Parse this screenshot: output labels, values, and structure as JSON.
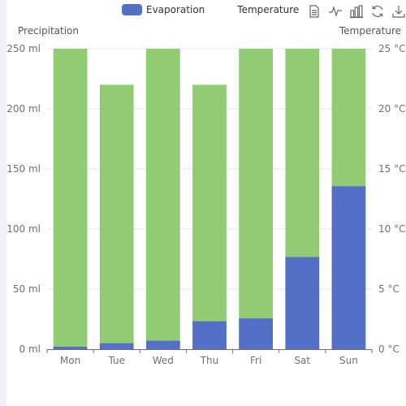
{
  "legend": {
    "items": [
      {
        "label": "Evaporation",
        "color": "#5470c6",
        "active": true
      },
      {
        "label": "Temperature",
        "color": "#91cc75",
        "active": false
      }
    ]
  },
  "toolbox": {
    "icons": [
      "data-view-icon",
      "line-chart-icon",
      "bar-chart-icon",
      "restore-icon",
      "save-image-icon"
    ]
  },
  "chart_data": {
    "type": "bar",
    "categories": [
      "Mon",
      "Tue",
      "Wed",
      "Thu",
      "Fri",
      "Sat",
      "Sun"
    ],
    "series": [
      {
        "name": "Evaporation",
        "color": "#5470c6",
        "axis": "left",
        "values": [
          2.0,
          4.9,
          7.0,
          23.2,
          25.6,
          76.7,
          135.6
        ]
      },
      {
        "name": "Precipitation",
        "color": "#91cc75",
        "axis": "left",
        "values": [
          250,
          220,
          250,
          220,
          250,
          250,
          250
        ]
      }
    ],
    "y_left": {
      "title": "Precipitation",
      "ticks": [
        0,
        50,
        100,
        150,
        200,
        250
      ],
      "tick_labels": [
        "0 ml",
        "50 ml",
        "100 ml",
        "150 ml",
        "200 ml",
        "250 ml"
      ],
      "ylim": [
        0,
        250
      ]
    },
    "y_right": {
      "title": "Temperature",
      "ticks": [
        0,
        5,
        10,
        15,
        20,
        25
      ],
      "tick_labels": [
        "0 °C",
        "5 °C",
        "10 °C",
        "15 °C",
        "20 °C",
        "25 °C"
      ],
      "ylim": [
        0,
        25
      ]
    },
    "grid": true,
    "legend_position": "top-center"
  }
}
